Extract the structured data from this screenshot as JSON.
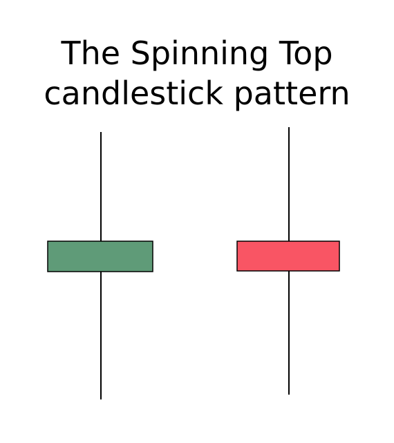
{
  "title": {
    "line1": "The Spinning Top",
    "line2": "candlestick pattern"
  },
  "candles": [
    {
      "name": "bullish-candle",
      "color": "#5f9b78"
    },
    {
      "name": "bearish-candle",
      "color": "#f95564"
    }
  ],
  "colors": {
    "background": "#ffffff",
    "outline": "#000000"
  }
}
